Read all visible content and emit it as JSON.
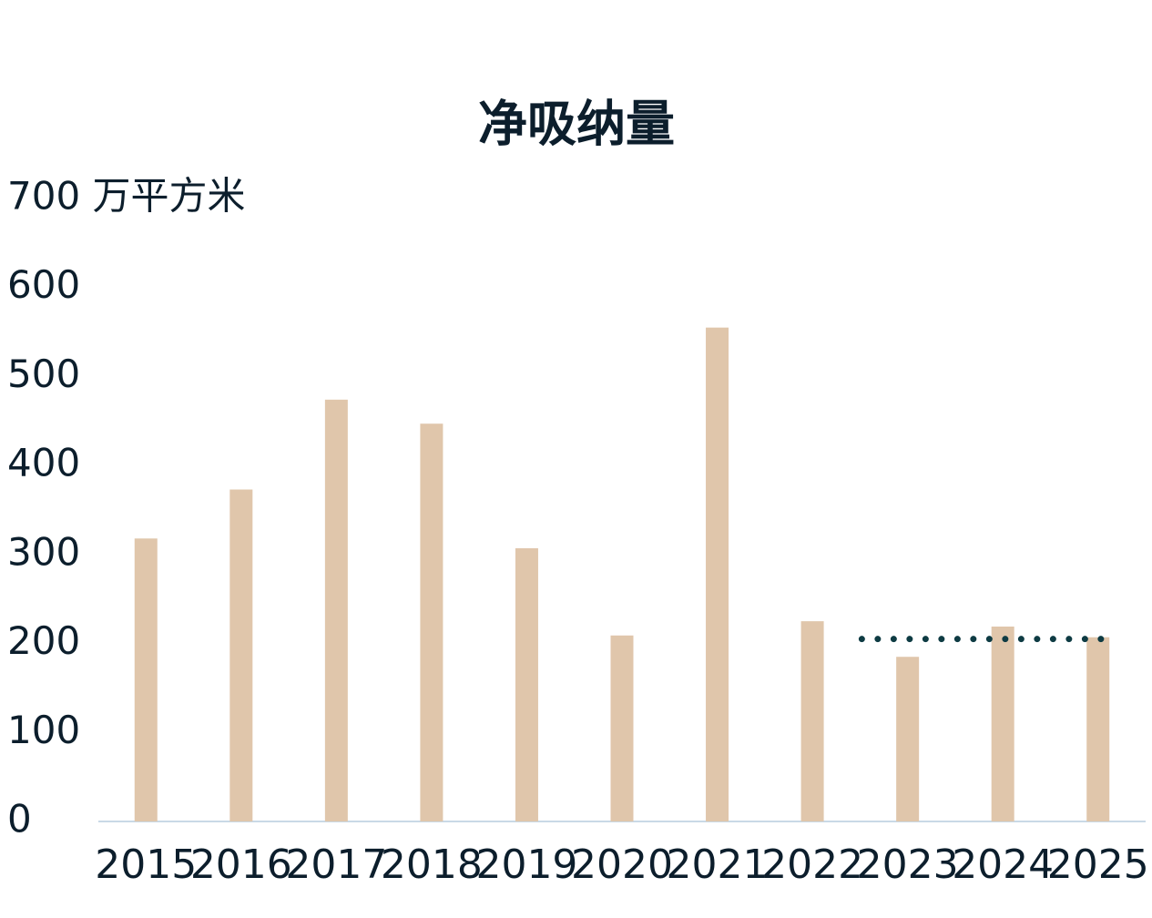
{
  "chart_data": {
    "type": "bar",
    "title": "净吸纳量",
    "categories": [
      "2015",
      "2016",
      "2017",
      "2018",
      "2019",
      "2020",
      "2021",
      "2022",
      "2023",
      "2024",
      "2025"
    ],
    "values": [
      318,
      373,
      474,
      447,
      307,
      209,
      555,
      225,
      185,
      219,
      207
    ],
    "color": "#e0c6ab",
    "ylim": [
      0,
      700
    ],
    "yticks": [
      0,
      100,
      200,
      300,
      400,
      500,
      600,
      {
        "value": 700,
        "label": "700 万平方米"
      }
    ],
    "grid": false,
    "lines": [
      {
        "values": [
          null,
          null,
          null,
          null,
          null,
          null,
          null,
          null,
          205,
          205,
          205
        ],
        "color": "#0e3b43",
        "style": "dotted"
      }
    ]
  }
}
